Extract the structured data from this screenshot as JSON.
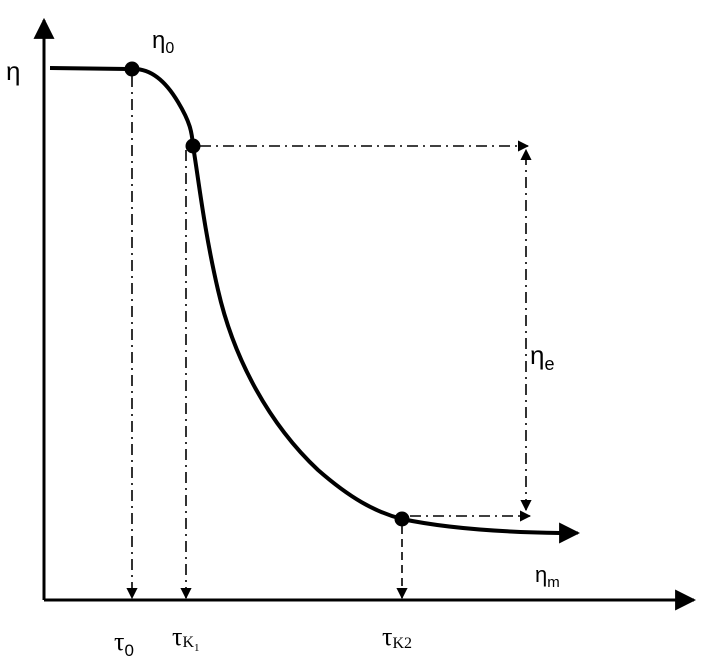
{
  "diagram": {
    "labels": {
      "y_axis": "η",
      "eta_0": {
        "main": "η",
        "sub": "0"
      },
      "eta_e": {
        "main": "η",
        "sub": "e"
      },
      "eta_m": {
        "main": "η",
        "sub": "m"
      },
      "tau_0": {
        "main": "τ",
        "sub": "0"
      },
      "tau_k1": {
        "main": "τ",
        "sub": "K",
        "subsub": "1"
      },
      "tau_k2": {
        "main": "τ",
        "sub": "K2"
      }
    },
    "colors": {
      "ink": "#000000",
      "background": "#ffffff"
    }
  }
}
